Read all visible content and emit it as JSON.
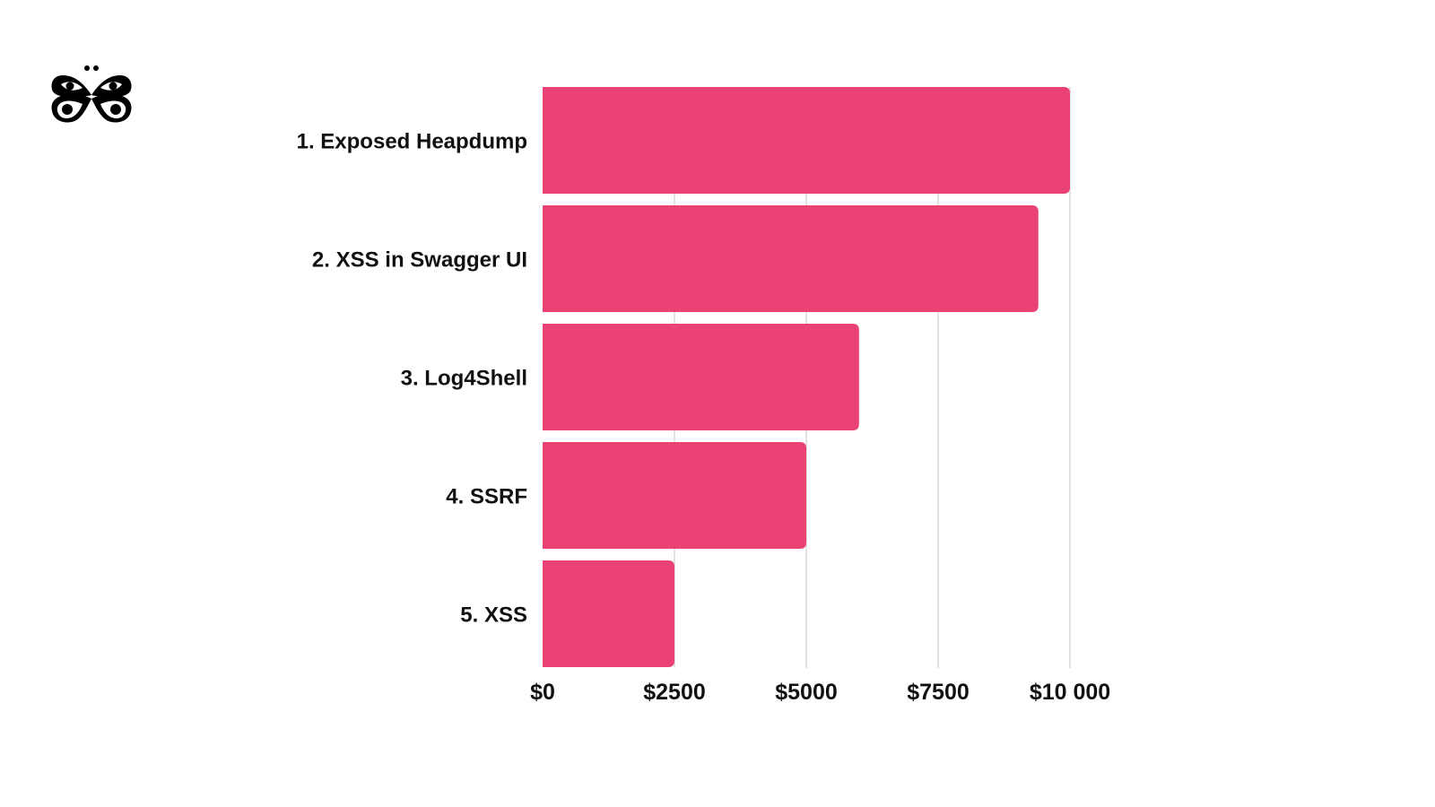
{
  "logo": {
    "name": "butterfly-logo"
  },
  "colors": {
    "bar": "#EB4276",
    "grid": "#D9D9D9",
    "text": "#111111"
  },
  "chart_data": {
    "type": "bar",
    "orientation": "horizontal",
    "title": "",
    "xlabel": "",
    "ylabel": "",
    "categories": [
      "1. Exposed Heapdump",
      "2. XSS in Swagger UI",
      "3. Log4Shell",
      "4. SSRF",
      "5. XSS"
    ],
    "values": [
      10000,
      9400,
      6000,
      5000,
      2500
    ],
    "xlim": [
      0,
      10000
    ],
    "xticks": [
      0,
      2500,
      5000,
      7500,
      10000
    ],
    "xtick_labels": [
      "$0",
      "$2500",
      "$5000",
      "$7500",
      "$10 000"
    ],
    "grid": true,
    "legend": "none"
  }
}
